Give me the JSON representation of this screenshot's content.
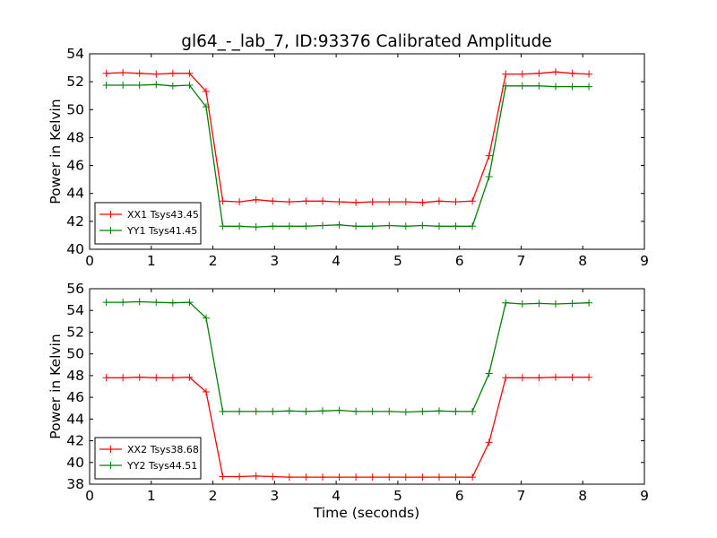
{
  "chart_data": {
    "type": "line",
    "title": "gl64_-_lab_7, ID:93376 Calibrated Amplitude",
    "xlabel": "Time (seconds)",
    "legend_position": "lower-left",
    "grid": false,
    "x": [
      0.27,
      0.54,
      0.81,
      1.08,
      1.35,
      1.62,
      1.89,
      2.16,
      2.43,
      2.7,
      2.97,
      3.24,
      3.51,
      3.78,
      4.05,
      4.32,
      4.59,
      4.86,
      5.13,
      5.4,
      5.67,
      5.94,
      6.21,
      6.48,
      6.75,
      7.02,
      7.29,
      7.56,
      7.83,
      8.1
    ],
    "panels": [
      {
        "ylabel": "Power in Kelvin",
        "xlim": [
          0,
          9
        ],
        "ylim": [
          40,
          54
        ],
        "xticks": [
          0,
          1,
          2,
          3,
          4,
          5,
          6,
          7,
          8,
          9
        ],
        "yticks": [
          40,
          42,
          44,
          46,
          48,
          50,
          52,
          54
        ],
        "series": [
          {
            "name": "XX1 Tsys43.45",
            "color": "#ff0000",
            "values": [
              52.6,
              52.65,
              52.6,
              52.55,
              52.6,
              52.6,
              51.3,
              43.45,
              43.4,
              43.55,
              43.45,
              43.4,
              43.45,
              43.45,
              43.4,
              43.35,
              43.4,
              43.4,
              43.4,
              43.35,
              43.45,
              43.4,
              43.45,
              46.7,
              52.55,
              52.55,
              52.6,
              52.7,
              52.6,
              52.55
            ]
          },
          {
            "name": "YY1 Tsys41.45",
            "color": "#008000",
            "values": [
              51.75,
              51.75,
              51.75,
              51.8,
              51.7,
              51.75,
              50.2,
              41.65,
              41.65,
              41.6,
              41.65,
              41.65,
              41.65,
              41.7,
              41.75,
              41.65,
              41.65,
              41.7,
              41.65,
              41.7,
              41.65,
              41.65,
              41.65,
              45.2,
              51.7,
              51.7,
              51.7,
              51.65,
              51.65,
              51.65
            ]
          }
        ]
      },
      {
        "ylabel": "Power in Kelvin",
        "xlim": [
          0,
          9
        ],
        "ylim": [
          38,
          56
        ],
        "xticks": [
          0,
          1,
          2,
          3,
          4,
          5,
          6,
          7,
          8,
          9
        ],
        "yticks": [
          38,
          40,
          42,
          44,
          46,
          48,
          50,
          52,
          54,
          56
        ],
        "series": [
          {
            "name": "XX2 Tsys38.68",
            "color": "#ff0000",
            "values": [
              47.8,
              47.8,
              47.85,
              47.8,
              47.8,
              47.85,
              46.5,
              38.7,
              38.7,
              38.75,
              38.7,
              38.65,
              38.65,
              38.65,
              38.65,
              38.65,
              38.65,
              38.65,
              38.65,
              38.65,
              38.65,
              38.65,
              38.65,
              41.85,
              47.8,
              47.8,
              47.8,
              47.85,
              47.85,
              47.85
            ]
          },
          {
            "name": "YY2 Tsys44.51",
            "color": "#008000",
            "values": [
              54.75,
              54.75,
              54.8,
              54.75,
              54.7,
              54.75,
              53.3,
              44.7,
              44.7,
              44.7,
              44.7,
              44.75,
              44.7,
              44.75,
              44.8,
              44.7,
              44.7,
              44.7,
              44.65,
              44.7,
              44.75,
              44.7,
              44.7,
              48.2,
              54.7,
              54.6,
              54.65,
              54.6,
              54.65,
              54.7
            ]
          }
        ]
      }
    ]
  }
}
